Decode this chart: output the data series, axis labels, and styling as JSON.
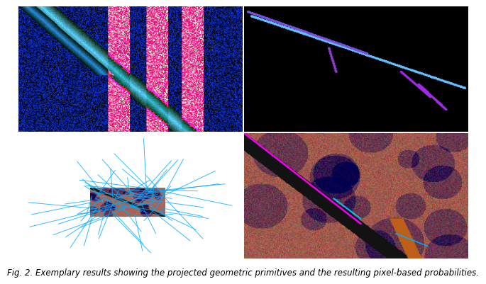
{
  "figure_caption": "Fig. 2. Exemplary results showing the projected geometric primitives and the resulting pixel-based probabilities.",
  "caption_fontsize": 8.5,
  "bg_color": "#ffffff",
  "fig_width": 6.4,
  "fig_height": 3.95
}
